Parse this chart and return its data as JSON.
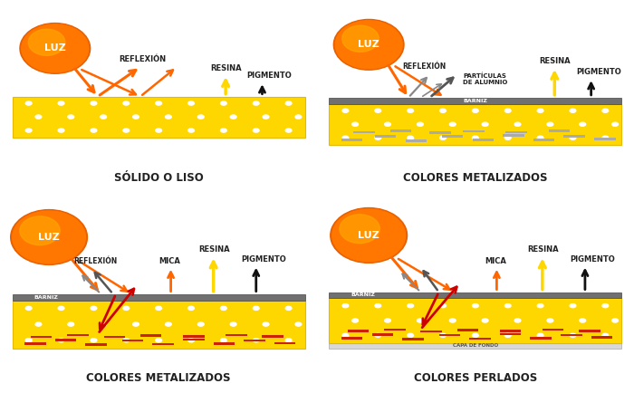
{
  "bg_color": "#ffffff",
  "panel_titles": [
    "SÓLIDO O LISO",
    "COLORES METALIZADOS",
    "COLORES METALIZADOS",
    "COLORES PERLADOS"
  ],
  "gold_color": "#FFD700",
  "gold_edge": "#E6B800",
  "barniz_color": "#707070",
  "barniz_text_color": "#ffffff",
  "capa_color": "#D8D8D8",
  "capa_edge": "#AAAAAA",
  "capa_text_color": "#555555",
  "sun_outer": "#E86000",
  "sun_mid": "#FF7700",
  "sun_inner": "#FFAA00",
  "sun_text_color": "#ffffff",
  "orange_arrow": "#FF6600",
  "yellow_arrow": "#FFD700",
  "black_arrow": "#111111",
  "gray_arrow": "#888888",
  "darkgray_arrow": "#555555",
  "red_arrow": "#CC0000",
  "white_dot": "#ffffff",
  "silver_bar": "#AAAAAA",
  "red_bar": "#CC2200",
  "title_color": "#222222",
  "label_color": "#222222"
}
